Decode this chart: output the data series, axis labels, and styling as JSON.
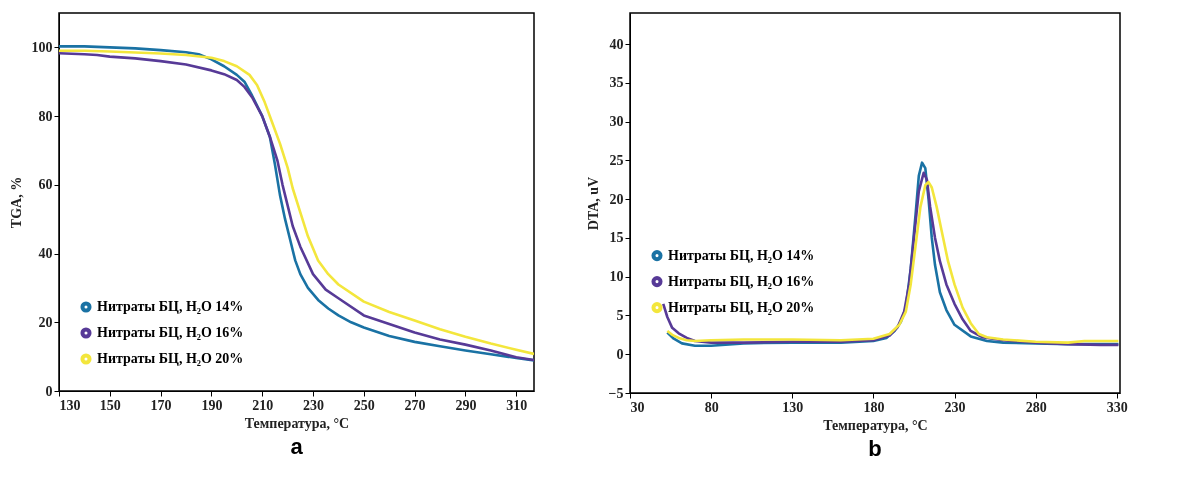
{
  "chart_data": [
    {
      "type": "line",
      "xlabel": "Температура, °C",
      "ylabel": "TGA, %",
      "annotations": [
        "a"
      ],
      "xlim": [
        130,
        317
      ],
      "ylim": [
        0,
        110
      ],
      "xticks": [
        130,
        150,
        170,
        190,
        210,
        230,
        250,
        270,
        290,
        310
      ],
      "yticks": [
        0,
        20,
        40,
        60,
        80,
        100
      ],
      "grid": false,
      "legend": "bottom left",
      "series": [
        {
          "name": "Нитраты БЦ, H₂O 14%",
          "color": "#1a72a4",
          "x": [
            130,
            140,
            150,
            160,
            170,
            180,
            185,
            190,
            195,
            200,
            203,
            206,
            210,
            213,
            215,
            217,
            219,
            221,
            223,
            225,
            228,
            232,
            236,
            240,
            245,
            250,
            260,
            270,
            280,
            290,
            300,
            310,
            317
          ],
          "values": [
            100.3,
            100.3,
            100,
            99.7,
            99.2,
            98.6,
            98,
            96.5,
            94.5,
            92,
            90,
            86,
            80,
            74,
            66,
            57,
            50,
            44,
            38,
            34,
            30,
            26.5,
            24,
            22,
            20,
            18.5,
            16,
            14.3,
            13,
            11.8,
            10.7,
            9.6,
            8.9
          ]
        },
        {
          "name": "Нитраты БЦ, H₂O 16%",
          "color": "#573a97",
          "x": [
            130,
            140,
            145,
            150,
            160,
            170,
            180,
            190,
            195,
            200,
            203,
            206,
            210,
            213,
            216,
            218,
            220,
            222,
            225,
            230,
            235,
            240,
            250,
            260,
            270,
            280,
            290,
            300,
            310,
            317
          ],
          "values": [
            98.3,
            98,
            97.8,
            97.3,
            96.8,
            96,
            95,
            93.3,
            92.2,
            90.5,
            88.5,
            85.5,
            80,
            74,
            67,
            60,
            54,
            48,
            42,
            34,
            29.5,
            27,
            22,
            19.5,
            17,
            15,
            13.5,
            11.8,
            9.8,
            9
          ]
        },
        {
          "name": "Нитраты БЦ, H₂O 20%",
          "color": "#f3e63c",
          "x": [
            130,
            140,
            150,
            160,
            170,
            180,
            190,
            195,
            200,
            205,
            208,
            211,
            214,
            217,
            220,
            222,
            225,
            228,
            232,
            236,
            240,
            250,
            260,
            270,
            280,
            290,
            300,
            310,
            317
          ],
          "values": [
            99,
            99,
            98.8,
            98.5,
            98.2,
            97.8,
            97,
            96,
            94.5,
            92,
            89,
            84,
            78,
            72,
            65,
            59,
            52,
            45,
            38,
            34,
            31,
            26,
            23,
            20.5,
            18,
            15.8,
            13.8,
            12,
            10.8
          ]
        }
      ]
    },
    {
      "type": "line",
      "xlabel": "Температура, °C",
      "ylabel": "DTA, uV",
      "annotations": [
        "b"
      ],
      "xlim": [
        30,
        332
      ],
      "ylim": [
        -5,
        44
      ],
      "xticks": [
        30,
        80,
        130,
        180,
        230,
        280,
        330
      ],
      "yticks": [
        -5,
        0,
        5,
        10,
        15,
        20,
        25,
        30,
        35,
        40
      ],
      "grid": false,
      "legend": "left",
      "series": [
        {
          "name": "Нитраты БЦ, H₂O 14%",
          "color": "#1a72a4",
          "x": [
            53,
            57,
            62,
            70,
            80,
            100,
            130,
            160,
            180,
            188,
            193,
            197,
            200,
            203,
            206,
            208,
            210,
            212,
            214,
            216,
            218,
            221,
            225,
            230,
            240,
            250,
            260,
            280,
            300,
            320,
            331
          ],
          "values": [
            2.8,
            2.0,
            1.4,
            1.1,
            1.1,
            1.4,
            1.5,
            1.5,
            1.7,
            2.1,
            3,
            4.2,
            6,
            11,
            18,
            23,
            24.7,
            24,
            20,
            15,
            11.5,
            8,
            5.7,
            3.8,
            2.3,
            1.7,
            1.5,
            1.4,
            1.3,
            1.3,
            1.3
          ]
        },
        {
          "name": "Нитраты БЦ, H₂O 16%",
          "color": "#573a97",
          "x": [
            50.5,
            53,
            56,
            60,
            65,
            70,
            80,
            100,
            130,
            160,
            180,
            190,
            195,
            199,
            202,
            205,
            208,
            211,
            213,
            215,
            218,
            221,
            225,
            230,
            235,
            240,
            247,
            260,
            280,
            300,
            320,
            331
          ],
          "values": [
            6.5,
            4.8,
            3.4,
            2.7,
            2.1,
            1.7,
            1.5,
            1.5,
            1.6,
            1.6,
            1.8,
            2.4,
            3.5,
            5.5,
            9,
            15,
            21,
            23.4,
            22.5,
            19,
            15,
            12,
            9,
            6.5,
            4.5,
            3,
            2.2,
            1.8,
            1.5,
            1.3,
            1.2,
            1.2
          ]
        },
        {
          "name": "Нитраты БЦ, H₂O 20%",
          "color": "#f3e63c",
          "x": [
            53,
            56,
            60,
            65,
            70,
            80,
            100,
            130,
            160,
            180,
            190,
            196,
            200,
            203,
            206,
            209,
            212,
            214,
            216,
            219,
            222,
            226,
            230,
            235,
            240,
            245,
            250,
            260,
            280,
            300,
            310,
            331
          ],
          "values": [
            3.0,
            2.5,
            2.1,
            1.8,
            1.7,
            1.8,
            1.9,
            1.9,
            1.8,
            2.0,
            2.6,
            3.8,
            5.5,
            9,
            14,
            19,
            21.8,
            22.2,
            21.5,
            19,
            16,
            12,
            9,
            6,
            4,
            2.6,
            2.2,
            1.9,
            1.6,
            1.5,
            1.7,
            1.7
          ]
        }
      ]
    }
  ]
}
